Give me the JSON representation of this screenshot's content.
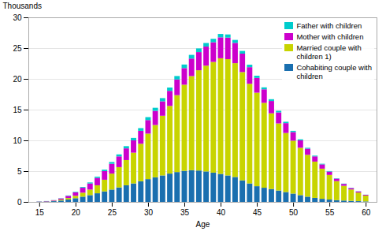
{
  "chart_data": {
    "type": "bar",
    "stacked": true,
    "x": [
      15,
      16,
      17,
      18,
      19,
      20,
      21,
      22,
      23,
      24,
      25,
      26,
      27,
      28,
      29,
      30,
      31,
      32,
      33,
      34,
      35,
      36,
      37,
      38,
      39,
      40,
      41,
      42,
      43,
      44,
      45,
      46,
      47,
      48,
      49,
      50,
      51,
      52,
      53,
      54,
      55,
      56,
      57,
      58,
      59,
      60
    ],
    "xlabel": "Age",
    "ylabel": "Thousands",
    "xlim": [
      13.5,
      61.5
    ],
    "xticks": [
      15,
      20,
      25,
      30,
      35,
      40,
      45,
      50,
      55,
      60
    ],
    "ylim": [
      0,
      30
    ],
    "yticks": [
      0,
      5,
      10,
      15,
      20,
      25,
      30
    ],
    "grid": true,
    "legend": "upper right",
    "series": [
      {
        "name": "Cohabiting couple with\nchildren",
        "color": "#1a6faf",
        "values": [
          0.04,
          0.07,
          0.12,
          0.22,
          0.38,
          0.6,
          0.85,
          1.1,
          1.4,
          1.7,
          2.0,
          2.35,
          2.7,
          3.0,
          3.35,
          3.7,
          4.0,
          4.3,
          4.6,
          4.85,
          5.05,
          5.15,
          5.1,
          4.95,
          4.75,
          4.55,
          4.3,
          4.05,
          3.5,
          3.0,
          2.55,
          2.3,
          2.1,
          1.85,
          1.6,
          1.35,
          1.1,
          0.85,
          0.65,
          0.5,
          0.38,
          0.28,
          0.22,
          0.17,
          0.12,
          0.08
        ]
      },
      {
        "name": "Married couple with\nchildren 1)",
        "color": "#c8d400",
        "values": [
          0.01,
          0.02,
          0.07,
          0.15,
          0.25,
          0.4,
          0.65,
          0.9,
          1.3,
          1.9,
          2.6,
          3.3,
          4.1,
          5.0,
          6.1,
          7.4,
          8.5,
          9.7,
          11.0,
          12.5,
          14.0,
          15.3,
          16.3,
          17.2,
          18.0,
          18.8,
          18.9,
          18.5,
          17.6,
          16.2,
          15.2,
          13.8,
          12.3,
          10.9,
          9.6,
          8.6,
          7.7,
          6.8,
          5.9,
          4.9,
          4.0,
          3.1,
          2.4,
          1.85,
          1.4,
          0.95
        ]
      },
      {
        "name": "Mother with children",
        "color": "#cc00cc",
        "values": [
          0.02,
          0.04,
          0.08,
          0.18,
          0.35,
          0.55,
          0.8,
          1.0,
          1.2,
          1.4,
          1.6,
          1.75,
          1.9,
          2.0,
          2.1,
          2.2,
          2.3,
          2.35,
          2.45,
          2.55,
          2.7,
          2.85,
          2.95,
          3.1,
          3.2,
          3.4,
          3.5,
          3.3,
          3.0,
          2.7,
          2.4,
          2.2,
          2.0,
          1.8,
          1.6,
          1.4,
          1.2,
          1.0,
          0.85,
          0.7,
          0.55,
          0.4,
          0.3,
          0.22,
          0.17,
          0.12
        ]
      },
      {
        "name": "Father with children",
        "color": "#00cccc",
        "values": [
          0.01,
          0.01,
          0.02,
          0.04,
          0.06,
          0.08,
          0.12,
          0.16,
          0.2,
          0.24,
          0.28,
          0.32,
          0.36,
          0.4,
          0.44,
          0.48,
          0.5,
          0.52,
          0.54,
          0.56,
          0.58,
          0.6,
          0.6,
          0.58,
          0.56,
          0.55,
          0.52,
          0.48,
          0.44,
          0.4,
          0.36,
          0.32,
          0.29,
          0.26,
          0.23,
          0.2,
          0.17,
          0.14,
          0.12,
          0.1,
          0.08,
          0.06,
          0.05,
          0.04,
          0.03,
          0.02
        ]
      }
    ]
  }
}
